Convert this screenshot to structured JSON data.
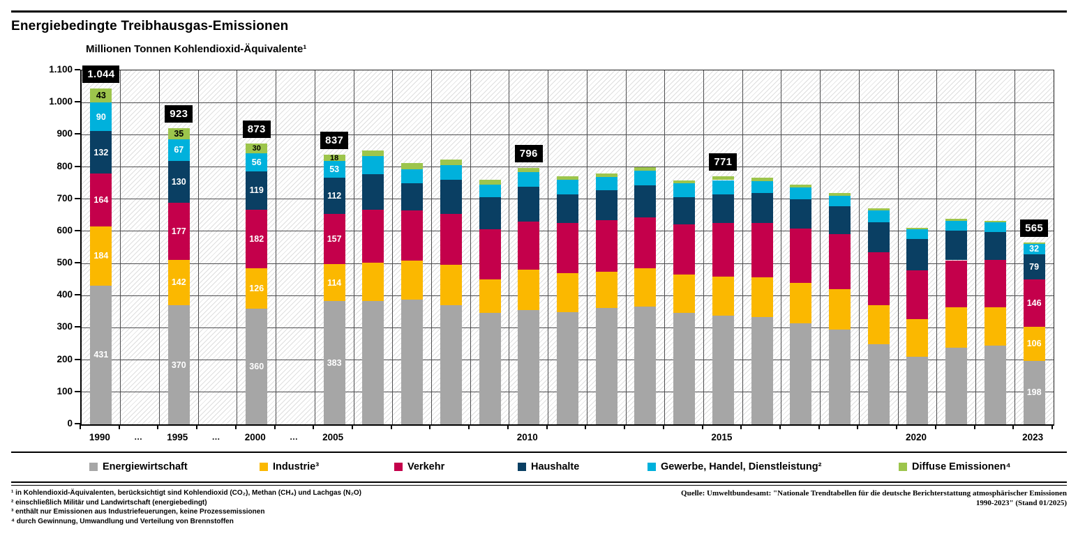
{
  "page": {
    "title": "Energiebedingte Treibhausgas-Emissionen",
    "subtitle": "Millionen Tonnen Kohlendioxid-Äquivalente¹"
  },
  "chart_data": {
    "type": "bar",
    "stacked": true,
    "title": "Energiebedingte Treibhausgas-Emissionen",
    "ylabel": "Millionen Tonnen Kohlendioxid-Äquivalente¹",
    "ylim": [
      0,
      1100
    ],
    "grid": true,
    "legend_position": "bottom",
    "y_ticks": [
      {
        "v": 1100,
        "label": "1.100"
      },
      {
        "v": 1000,
        "label": "1.000"
      },
      {
        "v": 900,
        "label": "900"
      },
      {
        "v": 800,
        "label": "800"
      },
      {
        "v": 700,
        "label": "700"
      },
      {
        "v": 600,
        "label": "600"
      },
      {
        "v": 500,
        "label": "500"
      },
      {
        "v": 400,
        "label": "400"
      },
      {
        "v": 300,
        "label": "300"
      },
      {
        "v": 200,
        "label": "200"
      },
      {
        "v": 100,
        "label": "100"
      },
      {
        "v": 0,
        "label": "0"
      }
    ],
    "slot_count": 25,
    "x_labels": [
      {
        "slot": 0,
        "text": "1990",
        "dots": false
      },
      {
        "slot": 1,
        "text": "…",
        "dots": true
      },
      {
        "slot": 2,
        "text": "1995",
        "dots": false
      },
      {
        "slot": 3,
        "text": "…",
        "dots": true
      },
      {
        "slot": 4,
        "text": "2000",
        "dots": false
      },
      {
        "slot": 5,
        "text": "…",
        "dots": true
      },
      {
        "slot": 6,
        "text": "2005",
        "dots": false
      },
      {
        "slot": 11,
        "text": "2010",
        "dots": false
      },
      {
        "slot": 16,
        "text": "2015",
        "dots": false
      },
      {
        "slot": 21,
        "text": "2020",
        "dots": false
      },
      {
        "slot": 24,
        "text": "2023",
        "dots": false
      }
    ],
    "series": [
      {
        "name": "Energiewirtschaft",
        "color": "#A6A6A6",
        "label_color": "#FFFFFF"
      },
      {
        "name": "Industrie³",
        "color": "#FBB800",
        "label_color": "#FFFFFF"
      },
      {
        "name": "Verkehr",
        "color": "#C4004B",
        "label_color": "#FFFFFF"
      },
      {
        "name": "Haushalte",
        "color": "#0A3F63",
        "label_color": "#FFFFFF"
      },
      {
        "name": "Gewerbe, Handel, Dienstleistung²",
        "color": "#00B1DC",
        "label_color": "#FFFFFF"
      },
      {
        "name": "Diffuse Emissionen⁴",
        "color": "#9DC54C",
        "label_color": "#000000"
      }
    ],
    "bars": [
      {
        "year": "1990",
        "slot": 0,
        "values": [
          431,
          184,
          164,
          132,
          90,
          43
        ],
        "segment_labels": [
          "431",
          "184",
          "164",
          "132",
          "90",
          "43"
        ],
        "total_label": "1.044"
      },
      {
        "year": "1995",
        "slot": 2,
        "values": [
          370,
          142,
          177,
          130,
          67,
          35
        ],
        "segment_labels": [
          "370",
          "142",
          "177",
          "130",
          "67",
          "35"
        ],
        "total_label": "923"
      },
      {
        "year": "2000",
        "slot": 4,
        "values": [
          360,
          126,
          182,
          119,
          56,
          30
        ],
        "segment_labels": [
          "360",
          "126",
          "182",
          "119",
          "56",
          "30"
        ],
        "total_label": "873"
      },
      {
        "year": "2005",
        "slot": 6,
        "values": [
          383,
          114,
          157,
          112,
          53,
          18
        ],
        "segment_labels": [
          "383",
          "114",
          "157",
          "112",
          "53",
          "18"
        ],
        "total_label": "837"
      },
      {
        "year": "2006",
        "slot": 7,
        "values": [
          384,
          118,
          164,
          111,
          57,
          17
        ],
        "segment_labels": [],
        "total_label": ""
      },
      {
        "year": "2007",
        "slot": 8,
        "values": [
          387,
          122,
          156,
          85,
          43,
          18
        ],
        "segment_labels": [],
        "total_label": ""
      },
      {
        "year": "2008",
        "slot": 9,
        "values": [
          370,
          126,
          157,
          108,
          45,
          17
        ],
        "segment_labels": [],
        "total_label": ""
      },
      {
        "year": "2009",
        "slot": 10,
        "values": [
          346,
          105,
          155,
          100,
          39,
          16
        ],
        "segment_labels": [],
        "total_label": ""
      },
      {
        "year": "2010",
        "slot": 11,
        "values": [
          355,
          126,
          149,
          108,
          45,
          13
        ],
        "segment_labels": [],
        "total_label": "796"
      },
      {
        "year": "2011",
        "slot": 12,
        "values": [
          349,
          121,
          156,
          88,
          45,
          12
        ],
        "segment_labels": [],
        "total_label": ""
      },
      {
        "year": "2012",
        "slot": 13,
        "values": [
          362,
          113,
          159,
          93,
          41,
          11
        ],
        "segment_labels": [],
        "total_label": ""
      },
      {
        "year": "2013",
        "slot": 14,
        "values": [
          367,
          119,
          157,
          99,
          46,
          12
        ],
        "segment_labels": [],
        "total_label": ""
      },
      {
        "year": "2014",
        "slot": 15,
        "values": [
          346,
          119,
          157,
          83,
          44,
          10
        ],
        "segment_labels": [],
        "total_label": ""
      },
      {
        "year": "2015",
        "slot": 16,
        "values": [
          337,
          122,
          166,
          90,
          44,
          12
        ],
        "segment_labels": [],
        "total_label": "771"
      },
      {
        "year": "2016",
        "slot": 17,
        "values": [
          333,
          125,
          168,
          92,
          38,
          10
        ],
        "segment_labels": [],
        "total_label": ""
      },
      {
        "year": "2017",
        "slot": 18,
        "values": [
          313,
          127,
          168,
          92,
          36,
          9
        ],
        "segment_labels": [],
        "total_label": ""
      },
      {
        "year": "2018",
        "slot": 19,
        "values": [
          295,
          126,
          170,
          87,
          33,
          9
        ],
        "segment_labels": [],
        "total_label": ""
      },
      {
        "year": "2019",
        "slot": 20,
        "values": [
          248,
          123,
          164,
          94,
          36,
          7
        ],
        "segment_labels": [],
        "total_label": ""
      },
      {
        "year": "2020",
        "slot": 21,
        "values": [
          210,
          116,
          152,
          97,
          31,
          5
        ],
        "segment_labels": [],
        "total_label": ""
      },
      {
        "year": "2021",
        "slot": 22,
        "values": [
          238,
          125,
          147,
          92,
          31,
          5
        ],
        "segment_labels": [],
        "total_label": ""
      },
      {
        "year": "2022",
        "slot": 23,
        "values": [
          245,
          119,
          148,
          85,
          31,
          5
        ],
        "segment_labels": [],
        "total_label": ""
      },
      {
        "year": "2023",
        "slot": 24,
        "values": [
          198,
          106,
          146,
          79,
          32,
          4
        ],
        "segment_labels": [
          "198",
          "106",
          "146",
          "79",
          "32",
          ""
        ],
        "total_label": "565"
      }
    ]
  },
  "footnotes": [
    "¹ in Kohlendioxid-Äquivalenten, berücksichtigt sind Kohlendioxid (CO₂), Methan (CH₄) und Lachgas (N₂O)",
    "² einschließlich Militär und Landwirtschaft (energiebedingt)",
    "³ enthält nur Emissionen aus Industriefeuerungen, keine Prozessemissionen",
    "⁴ durch Gewinnung, Umwandlung und Verteilung von Brennstoffen"
  ],
  "source": {
    "line1": "Quelle: Umweltbundesamt: \"Nationale Trendtabellen für die deutsche Berichterstattung atmosphärischer Emissionen",
    "line2": "1990-2023\" (Stand 01/2025)"
  }
}
